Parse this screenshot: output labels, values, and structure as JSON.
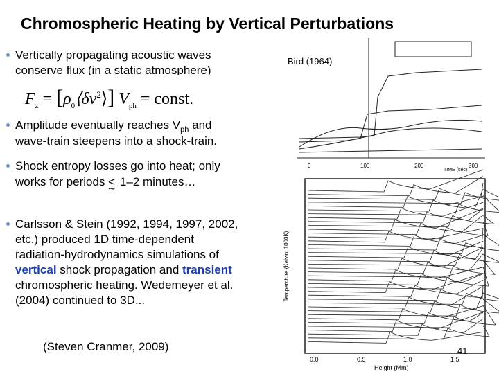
{
  "title": "Chromospheric Heating by Vertical Perturbations",
  "bullet1": [
    "Vertically propagating acoustic waves",
    "conserve flux (in a static atmosphere)"
  ],
  "equation": [
    "F",
    "z",
    "=",
    "[",
    "ρ",
    "0",
    "⟨δv",
    "2",
    "⟩",
    "]",
    "V",
    "ph",
    "=",
    "const."
  ],
  "bullet2": [
    "Amplitude eventually reaches V",
    "ph",
    " and",
    "wave-train steepens into a shock-train."
  ],
  "bullet3": [
    "Shock entropy losses go into heat; only",
    "works for periods ",
    "<",
    "~",
    " 1–2 minutes…"
  ],
  "bullet4": [
    "Carlsson & Stein (1992, 1994, 1997, 2002,",
    "etc.) produced 1D time-dependent",
    "radiation-hydrodynamics simulations of",
    "vertical",
    " shock propagation and ",
    "transient",
    "chromospheric heating.   Wedemeyer et al.",
    "(2004) continued to 3D..."
  ],
  "figure1": {
    "caption": "Bird (1964)",
    "xticks": [
      "0",
      "100",
      "200",
      "300"
    ],
    "xlabel": "TIME (sec)"
  },
  "figure2": {
    "xticks": [
      "0.0",
      "0.5",
      "1.0",
      "1.5"
    ],
    "xlabel": "Height (Mm)",
    "ylabel": "Temperature (Kelvin; 1000K)"
  },
  "citation": "(Steven Cranmer, 2009)",
  "page": "41"
}
